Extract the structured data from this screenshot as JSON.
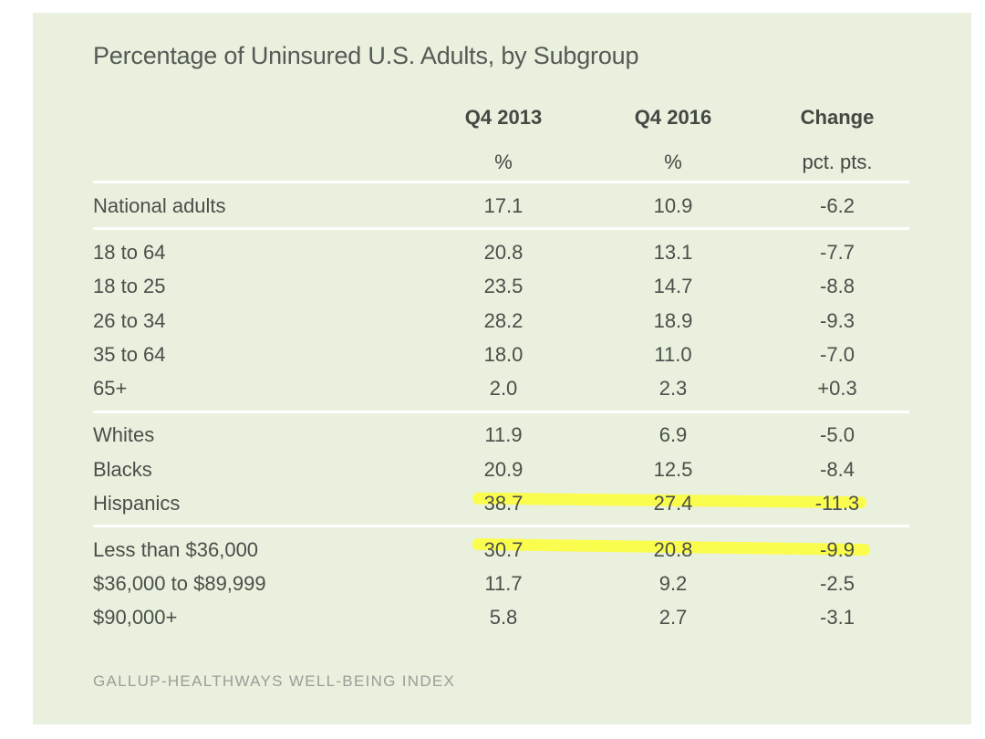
{
  "chart_data": {
    "type": "table",
    "title": "Percentage of Uninsured U.S. Adults, by Subgroup",
    "columns": [
      {
        "header": "Q4 2013",
        "unit": "%"
      },
      {
        "header": "Q4 2016",
        "unit": "%"
      },
      {
        "header": "Change",
        "unit": "pct. pts."
      }
    ],
    "groups": [
      {
        "rows": [
          {
            "label": "National adults",
            "values": [
              "17.1",
              "10.9",
              "-6.2"
            ]
          }
        ]
      },
      {
        "rows": [
          {
            "label": "18 to 64",
            "values": [
              "20.8",
              "13.1",
              "-7.7"
            ]
          },
          {
            "label": "18 to 25",
            "values": [
              "23.5",
              "14.7",
              "-8.8"
            ]
          },
          {
            "label": "26 to 34",
            "values": [
              "28.2",
              "18.9",
              "-9.3"
            ]
          },
          {
            "label": "35 to 64",
            "values": [
              "18.0",
              "11.0",
              "-7.0"
            ]
          },
          {
            "label": "65+",
            "values": [
              "2.0",
              "2.3",
              "+0.3"
            ]
          }
        ]
      },
      {
        "rows": [
          {
            "label": "Whites",
            "values": [
              "11.9",
              "6.9",
              "-5.0"
            ]
          },
          {
            "label": "Blacks",
            "values": [
              "20.9",
              "12.5",
              "-8.4"
            ]
          },
          {
            "label": "Hispanics",
            "values": [
              "38.7",
              "27.4",
              "-11.3"
            ],
            "highlighted": true
          }
        ]
      },
      {
        "rows": [
          {
            "label": "Less than $36,000",
            "values": [
              "30.7",
              "20.8",
              "-9.9"
            ],
            "highlighted": true
          },
          {
            "label": "$36,000 to $89,999",
            "values": [
              "11.7",
              "9.2",
              "-2.5"
            ]
          },
          {
            "label": "$90,000+",
            "values": [
              "5.8",
              "2.7",
              "-3.1"
            ]
          }
        ]
      }
    ],
    "source": "GALLUP-HEALTHWAYS WELL-BEING INDEX",
    "highlight_color": "#ffff2e"
  }
}
